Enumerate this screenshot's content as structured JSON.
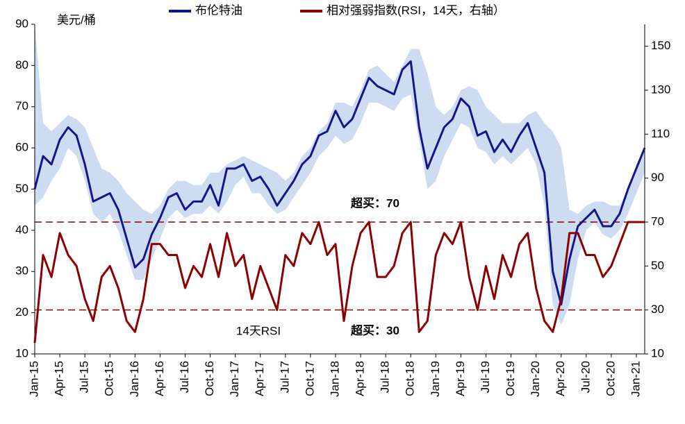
{
  "chart_data": {
    "type": "line",
    "y_label": "美元/桶",
    "categories": [
      "Jan-15",
      null,
      null,
      "Apr-15",
      null,
      null,
      "Jul-15",
      null,
      null,
      "Oct-15",
      null,
      null,
      "Jan-16",
      null,
      null,
      "Apr-16",
      null,
      null,
      "Jul-16",
      null,
      null,
      "Oct-16",
      null,
      null,
      "Jan-17",
      null,
      null,
      "Apr-17",
      null,
      null,
      "Jul-17",
      null,
      null,
      "Oct-17",
      null,
      null,
      "Jan-18",
      null,
      null,
      "Apr-18",
      null,
      null,
      "Jul-18",
      null,
      null,
      "Oct-18",
      null,
      null,
      "Jan-19",
      null,
      null,
      "Apr-19",
      null,
      null,
      "Jul-19",
      null,
      null,
      "Oct-19",
      null,
      null,
      "Jan-20",
      null,
      null,
      "Apr-20",
      null,
      null,
      "Jul-20",
      null,
      null,
      "Oct-20",
      null,
      null,
      "Jan-21",
      null
    ],
    "series": [
      {
        "name": "布伦特油",
        "color": "#15158a",
        "axis": "y",
        "values": [
          50,
          58,
          56,
          62,
          65,
          63,
          56,
          47,
          48,
          49,
          45,
          38,
          31,
          33,
          39,
          43,
          48,
          49,
          45,
          47,
          47,
          51,
          46,
          55,
          55,
          56,
          52,
          53,
          50,
          46,
          49,
          52,
          56,
          58,
          63,
          64,
          69,
          65,
          67,
          72,
          77,
          75,
          74,
          73,
          79,
          81,
          65,
          55,
          60,
          65,
          67,
          72,
          70,
          63,
          64,
          59,
          62,
          59,
          63,
          66,
          60,
          54,
          30,
          22,
          33,
          41,
          43,
          45,
          41,
          41,
          44,
          50,
          55,
          60
        ]
      },
      {
        "name": "相对强弱指数(RSI，14天，右轴）",
        "color": "#8b0000",
        "axis": "y2",
        "values": [
          15,
          55,
          45,
          65,
          55,
          50,
          35,
          25,
          45,
          50,
          40,
          25,
          20,
          35,
          60,
          60,
          55,
          55,
          40,
          50,
          45,
          60,
          45,
          65,
          50,
          55,
          35,
          50,
          40,
          30,
          55,
          50,
          65,
          60,
          70,
          55,
          60,
          25,
          50,
          65,
          70,
          45,
          45,
          50,
          65,
          70,
          20,
          25,
          55,
          65,
          60,
          70,
          45,
          30,
          50,
          35,
          55,
          45,
          60,
          65,
          40,
          25,
          20,
          35,
          65,
          65,
          55,
          55,
          45,
          50,
          60,
          70,
          70,
          70
        ]
      }
    ],
    "band": {
      "color": "#cddcf0",
      "upper": [
        90,
        66,
        64,
        66,
        68,
        67,
        65,
        60,
        55,
        54,
        52,
        49,
        47,
        45,
        44,
        46,
        50,
        52,
        52,
        51,
        51,
        54,
        54,
        56,
        57,
        58,
        57,
        56,
        55,
        54,
        52,
        54,
        58,
        60,
        64,
        66,
        71,
        71,
        70,
        74,
        79,
        80,
        78,
        76,
        80,
        84,
        84,
        78,
        70,
        68,
        70,
        74,
        75,
        74,
        70,
        68,
        66,
        66,
        66,
        68,
        69,
        66,
        64,
        60,
        45,
        44,
        46,
        47,
        47,
        46,
        46,
        50,
        56,
        60
      ],
      "lower": [
        46,
        48,
        52,
        55,
        60,
        58,
        52,
        44,
        42,
        44,
        40,
        34,
        28,
        28,
        33,
        38,
        43,
        45,
        43,
        44,
        44,
        46,
        44,
        47,
        51,
        53,
        49,
        49,
        46,
        44,
        45,
        48,
        51,
        54,
        58,
        60,
        63,
        61,
        62,
        66,
        71,
        71,
        70,
        69,
        72,
        73,
        62,
        50,
        52,
        58,
        62,
        66,
        65,
        60,
        59,
        56,
        58,
        56,
        58,
        60,
        56,
        46,
        22,
        17,
        22,
        33,
        40,
        42,
        39,
        38,
        40,
        44,
        49,
        54
      ]
    },
    "reference_lines": [
      {
        "value": 70,
        "label": "超买：70"
      },
      {
        "value": 30,
        "label": "超买：30"
      }
    ],
    "reference_color": "#8b0000",
    "rsi_label": "14天RSI",
    "ylim": [
      10,
      90
    ],
    "yticks": [
      10,
      20,
      30,
      40,
      50,
      60,
      70,
      80,
      90
    ],
    "y2lim": [
      10,
      160
    ],
    "y2ticks": [
      10,
      30,
      50,
      70,
      90,
      110,
      130,
      150
    ]
  }
}
